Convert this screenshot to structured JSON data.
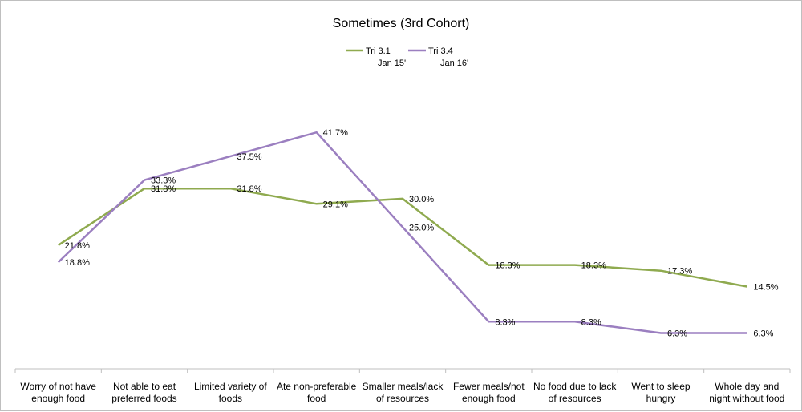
{
  "chart_data": {
    "type": "line",
    "title": "Sometimes (3rd Cohort)",
    "categories": [
      [
        "Worry of not have",
        "enough food"
      ],
      [
        "Not able to eat",
        "preferred foods"
      ],
      [
        "Limited variety of",
        "foods"
      ],
      [
        "Ate non-preferable",
        "food"
      ],
      [
        "Smaller meals/lack",
        "of resources"
      ],
      [
        "Fewer meals/not",
        "enough food"
      ],
      [
        "No food due to lack",
        "of resources"
      ],
      [
        "Went to sleep",
        "hungry"
      ],
      [
        "Whole day and",
        "night without food"
      ]
    ],
    "series": [
      {
        "name_lines": [
          "Tri 3.1",
          "Jan 15'"
        ],
        "color": "#8faa4f",
        "values": [
          21.8,
          31.8,
          31.8,
          29.1,
          30.0,
          18.3,
          18.3,
          17.3,
          14.5
        ],
        "labels": [
          "21.8%",
          "31.8%",
          "31.8%",
          "29.1%",
          "30.0%",
          "18.3%",
          "18.3%",
          "17.3%",
          "14.5%"
        ]
      },
      {
        "name_lines": [
          "Tri 3.4",
          "Jan 16'"
        ],
        "color": "#9b7fc0",
        "values": [
          18.8,
          33.3,
          37.5,
          41.7,
          25.0,
          8.3,
          8.3,
          6.3,
          6.3
        ],
        "labels": [
          "18.8%",
          "33.3%",
          "37.5%",
          "41.7%",
          "25.0%",
          "8.3%",
          "8.3%",
          "6.3%",
          "6.3%"
        ]
      }
    ],
    "ylim": [
      0,
      45
    ],
    "legend": "top-center",
    "grid": false
  }
}
